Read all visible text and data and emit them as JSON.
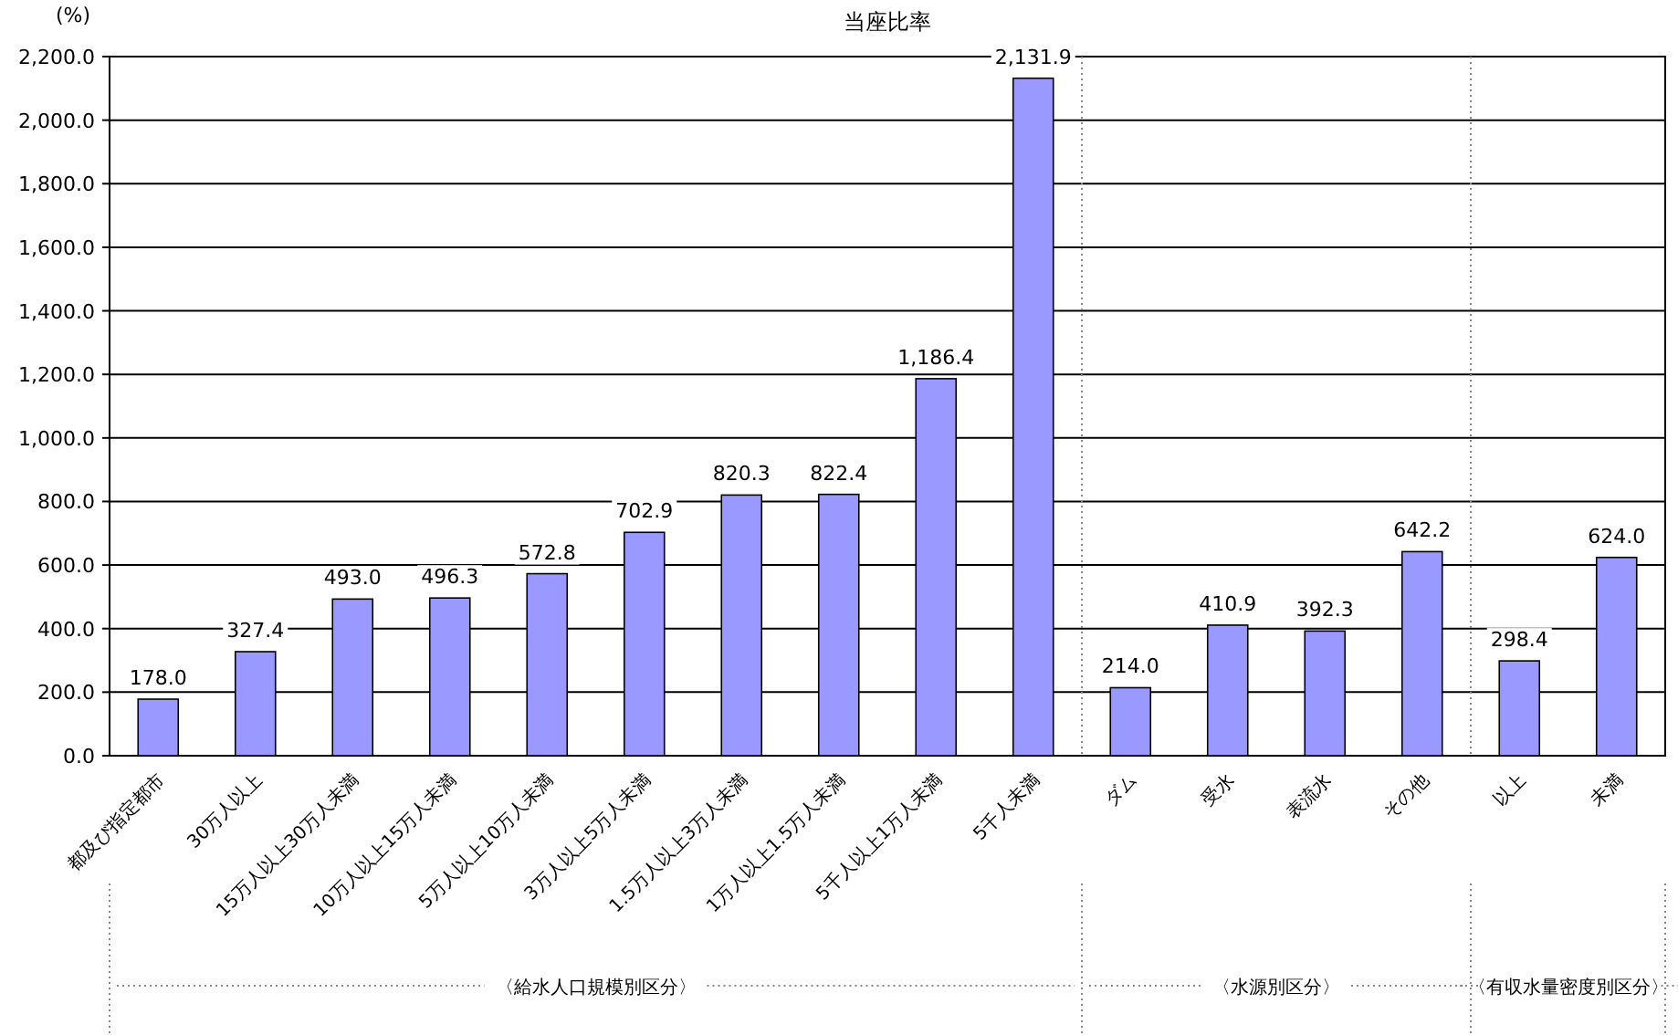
{
  "chart_data": {
    "type": "bar",
    "title": "当座比率",
    "ylabel": "(%)",
    "categories": [
      "都及び指定都市",
      "30万人以上",
      "15万人以上30万人未満",
      "10万人以上15万人未満",
      "5万人以上10万人未満",
      "3万人以上5万人未満",
      "1.5万人以上3万人未満",
      "1万人以上1.5万人未満",
      "5千人以上1万人未満",
      "5千人未満",
      "ダム",
      "受水",
      "表流水",
      "その他",
      "以上",
      "未満"
    ],
    "values": [
      178.0,
      327.4,
      493.0,
      496.3,
      572.8,
      702.9,
      820.3,
      822.4,
      1186.4,
      2131.9,
      214.0,
      410.9,
      392.3,
      642.2,
      298.4,
      624.0
    ],
    "value_labels": [
      "178.0",
      "327.4",
      "493.0",
      "496.3",
      "572.8",
      "702.9",
      "820.3",
      "822.4",
      "1,186.4",
      "2,131.9",
      "214.0",
      "410.9",
      "392.3",
      "642.2",
      "298.4",
      "624.0"
    ],
    "color": "#9999ff",
    "ylim": [
      0,
      2200
    ],
    "yticks": [
      {
        "value": 0,
        "label": "0.0"
      },
      {
        "value": 200,
        "label": "200.0"
      },
      {
        "value": 400,
        "label": "400.0"
      },
      {
        "value": 600,
        "label": "600.0"
      },
      {
        "value": 800,
        "label": "800.0"
      },
      {
        "value": 1000,
        "label": "1,000.0"
      },
      {
        "value": 1200,
        "label": "1,200.0"
      },
      {
        "value": 1400,
        "label": "1,400.0"
      },
      {
        "value": 1600,
        "label": "1,600.0"
      },
      {
        "value": 1800,
        "label": "1,800.0"
      },
      {
        "value": 2000,
        "label": "2,000.0"
      },
      {
        "value": 2200,
        "label": "2,200.0"
      }
    ],
    "grid": "y",
    "annotations": [
      "〈給水人口規模別区分〉",
      "〈水源別区分〉",
      "〈有収水量密度別区分〉"
    ]
  }
}
